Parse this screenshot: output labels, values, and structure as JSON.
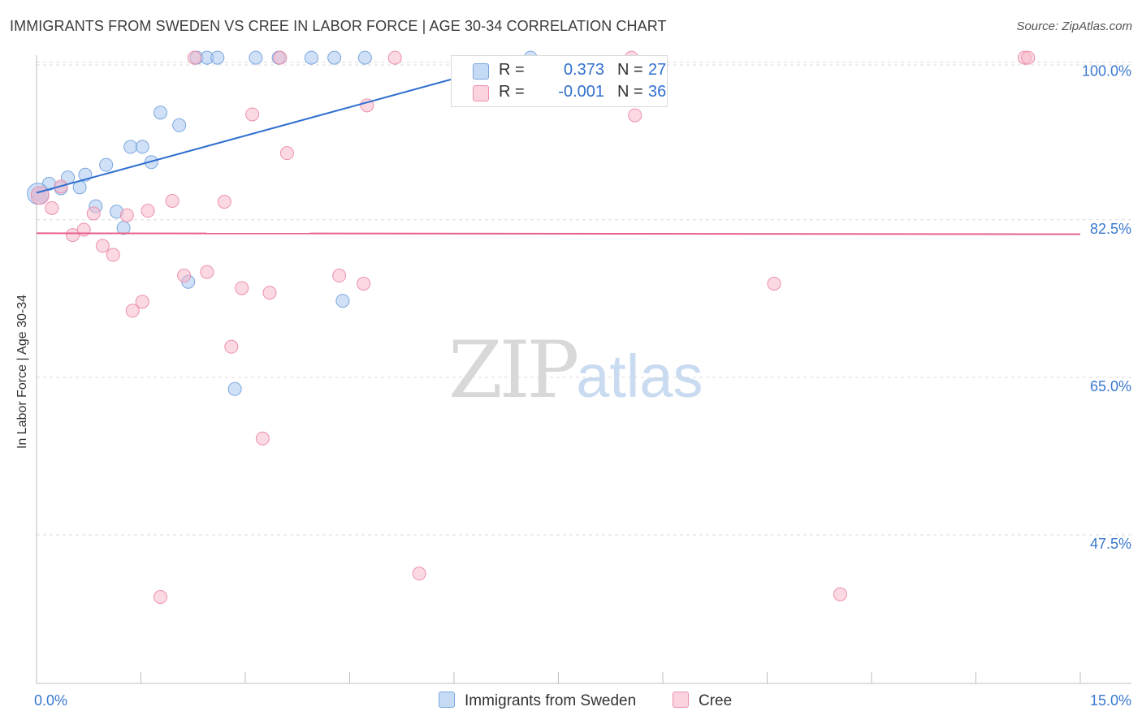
{
  "title": "IMMIGRANTS FROM SWEDEN VS CREE IN LABOR FORCE | AGE 30-34 CORRELATION CHART",
  "source": "Source: ZipAtlas.com",
  "watermark": {
    "zip": "ZIP",
    "atlas": "atlas"
  },
  "legend": {
    "rows": [
      {
        "r_label": "R =",
        "r_value": "0.373",
        "n_label": "N =",
        "n_value": "27",
        "color": "#a9c8f0"
      },
      {
        "r_label": "R =",
        "r_value": "-0.001",
        "n_label": "N =",
        "n_value": "36",
        "color": "#f7b9cb"
      }
    ]
  },
  "chart_data": {
    "type": "scatter",
    "title": "IMMIGRANTS FROM SWEDEN VS CREE IN LABOR FORCE | AGE 30-34 CORRELATION CHART",
    "xlabel": "",
    "ylabel": "In Labor Force | Age 30-34",
    "xlim": [
      0,
      15
    ],
    "ylim": [
      31,
      101.5
    ],
    "x_tick_labels": [
      "0.0%",
      "15.0%"
    ],
    "x_ticks": [
      0,
      15
    ],
    "y_ticks": [
      47.5,
      65.0,
      82.5,
      100.0
    ],
    "y_tick_labels": [
      "47.5%",
      "65.0%",
      "82.5%",
      "100.0%"
    ],
    "grid": true,
    "series": [
      {
        "name": "Immigrants from Sweden",
        "color": "#a9c8f0",
        "stroke": "#7aa6de",
        "line_color": "#2f6fcf",
        "points": [
          [
            0.02,
            85.4
          ],
          [
            0.18,
            86.5
          ],
          [
            0.35,
            86.0
          ],
          [
            0.45,
            87.2
          ],
          [
            0.62,
            86.1
          ],
          [
            0.7,
            87.5
          ],
          [
            0.85,
            84.0
          ],
          [
            1.0,
            88.6
          ],
          [
            1.15,
            83.4
          ],
          [
            1.25,
            81.6
          ],
          [
            1.35,
            90.6
          ],
          [
            1.52,
            90.6
          ],
          [
            1.65,
            88.9
          ],
          [
            1.78,
            94.4
          ],
          [
            2.05,
            93.0
          ],
          [
            2.18,
            75.6
          ],
          [
            2.3,
            100.5
          ],
          [
            2.45,
            100.5
          ],
          [
            2.6,
            100.5
          ],
          [
            2.85,
            63.7
          ],
          [
            3.15,
            100.5
          ],
          [
            3.48,
            100.5
          ],
          [
            3.95,
            100.5
          ],
          [
            4.28,
            100.5
          ],
          [
            4.4,
            73.5
          ],
          [
            4.72,
            100.5
          ],
          [
            7.1,
            100.5
          ]
        ],
        "trend": {
          "x": [
            0.0,
            7.1
          ],
          "y": [
            85.5,
            100.5
          ]
        }
      },
      {
        "name": "Cree",
        "color": "#f7b9cb",
        "stroke": "#ec90ab",
        "line_color": "#e8608c",
        "points": [
          [
            0.05,
            85.2
          ],
          [
            0.22,
            83.8
          ],
          [
            0.35,
            86.2
          ],
          [
            0.52,
            80.8
          ],
          [
            0.68,
            81.4
          ],
          [
            0.82,
            83.2
          ],
          [
            0.95,
            79.6
          ],
          [
            1.1,
            78.6
          ],
          [
            1.3,
            83.0
          ],
          [
            1.38,
            72.4
          ],
          [
            1.52,
            73.4
          ],
          [
            1.6,
            83.5
          ],
          [
            1.78,
            40.6
          ],
          [
            1.95,
            84.6
          ],
          [
            2.12,
            76.3
          ],
          [
            2.27,
            100.5
          ],
          [
            2.45,
            76.7
          ],
          [
            2.7,
            84.5
          ],
          [
            2.8,
            68.4
          ],
          [
            2.95,
            74.9
          ],
          [
            3.1,
            94.2
          ],
          [
            3.25,
            58.2
          ],
          [
            3.35,
            74.4
          ],
          [
            3.5,
            100.5
          ],
          [
            3.6,
            89.9
          ],
          [
            4.35,
            76.3
          ],
          [
            4.7,
            75.4
          ],
          [
            4.75,
            95.2
          ],
          [
            5.15,
            100.5
          ],
          [
            5.5,
            43.2
          ],
          [
            8.55,
            100.5
          ],
          [
            8.6,
            94.1
          ],
          [
            10.6,
            75.4
          ],
          [
            11.55,
            40.9
          ],
          [
            14.2,
            100.5
          ],
          [
            14.25,
            100.5
          ]
        ],
        "trend": {
          "x": [
            0.0,
            15.0
          ],
          "y": [
            81.0,
            80.9
          ]
        }
      }
    ]
  },
  "bottom_legend": [
    {
      "label": "Immigrants from Sweden",
      "color": "#a9c8f0"
    },
    {
      "label": "Cree",
      "color": "#f7b9cb"
    }
  ]
}
